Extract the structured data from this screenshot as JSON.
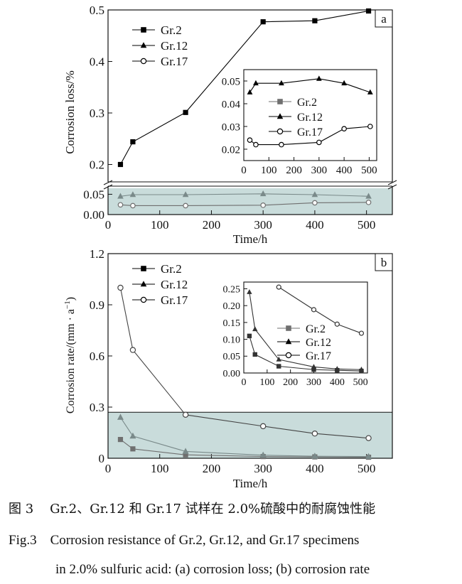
{
  "chart_data": [
    {
      "type": "line",
      "panel_label": "a",
      "xlabel": "Time/h",
      "ylabel": "Corrosion loss/%",
      "x_ticks": [
        "0",
        "100",
        "200",
        "300",
        "400",
        "500"
      ],
      "upper_y_ticks": [
        "0.2",
        "0.3",
        "0.4",
        "0.5"
      ],
      "lower_y_ticks": [
        "0.00",
        "0.05"
      ],
      "xlim": [
        0,
        550
      ],
      "upper_ylim": [
        0.18,
        0.5
      ],
      "lower_ylim": [
        0,
        0.07
      ],
      "shaded_band_ylim": [
        0,
        0.065
      ],
      "series": [
        {
          "name": "Gr.2",
          "marker": "square",
          "x": [
            24,
            48,
            150,
            300,
            400,
            504
          ],
          "values": [
            0.2,
            0.244,
            0.301,
            0.477,
            0.479,
            0.498
          ]
        },
        {
          "name": "Gr.12",
          "marker": "triangle",
          "x": [
            24,
            48,
            150,
            300,
            400,
            504
          ],
          "values": [
            0.045,
            0.049,
            0.049,
            0.051,
            0.049,
            0.045
          ]
        },
        {
          "name": "Gr.17",
          "marker": "circle-open",
          "x": [
            24,
            48,
            150,
            300,
            400,
            504
          ],
          "values": [
            0.024,
            0.022,
            0.022,
            0.023,
            0.029,
            0.03
          ]
        }
      ],
      "inset": {
        "x_ticks": [
          "0",
          "100",
          "200",
          "300",
          "400",
          "500"
        ],
        "y_ticks": [
          "0.02",
          "0.03",
          "0.04",
          "0.05"
        ],
        "xlim": [
          0,
          530
        ],
        "ylim": [
          0.015,
          0.055
        ],
        "series": [
          {
            "name": "Gr.12",
            "marker": "triangle",
            "x": [
              24,
              48,
              150,
              300,
              400,
              504
            ],
            "values": [
              0.045,
              0.049,
              0.049,
              0.051,
              0.049,
              0.045
            ]
          },
          {
            "name": "Gr.17",
            "marker": "circle-open",
            "x": [
              24,
              48,
              150,
              300,
              400,
              504
            ],
            "values": [
              0.024,
              0.022,
              0.022,
              0.023,
              0.029,
              0.03
            ]
          }
        ],
        "legend": [
          "Gr.2",
          "Gr.12",
          "Gr.17"
        ]
      }
    },
    {
      "type": "line",
      "panel_label": "b",
      "xlabel": "Time/h",
      "ylabel": "Corrosion rate/(mm·a⁻¹)",
      "ylabel_main": "Corrosion rate/(mm · a",
      "ylabel_sup": "−1",
      "ylabel_end": ")",
      "x_ticks": [
        "0",
        "100",
        "200",
        "300",
        "400",
        "500"
      ],
      "y_ticks": [
        "0",
        "0.3",
        "0.6",
        "0.9",
        "1.2"
      ],
      "xlim": [
        0,
        550
      ],
      "ylim": [
        0,
        1.2
      ],
      "shaded_band_ylim": [
        0,
        0.27
      ],
      "series": [
        {
          "name": "Gr.2",
          "marker": "square",
          "x": [
            24,
            48,
            150,
            300,
            400,
            504
          ],
          "values": [
            0.11,
            0.055,
            0.02,
            0.01,
            0.008,
            0.006
          ]
        },
        {
          "name": "Gr.12",
          "marker": "triangle",
          "x": [
            24,
            48,
            150,
            300,
            400,
            504
          ],
          "values": [
            0.24,
            0.13,
            0.04,
            0.018,
            0.012,
            0.01
          ]
        },
        {
          "name": "Gr.17",
          "marker": "circle-open",
          "x": [
            24,
            48,
            150,
            300,
            400,
            504
          ],
          "values": [
            1.0,
            0.635,
            0.255,
            0.188,
            0.145,
            0.118
          ]
        }
      ],
      "inset": {
        "x_ticks": [
          "0",
          "100",
          "200",
          "300",
          "400",
          "500"
        ],
        "y_ticks": [
          "0.00",
          "0.05",
          "0.10",
          "0.15",
          "0.20",
          "0.25"
        ],
        "xlim": [
          0,
          530
        ],
        "ylim": [
          0,
          0.27
        ],
        "series": [
          {
            "name": "Gr.2",
            "marker": "square",
            "x": [
              24,
              48,
              150,
              300,
              400,
              504
            ],
            "values": [
              0.11,
              0.055,
              0.02,
              0.01,
              0.008,
              0.006
            ]
          },
          {
            "name": "Gr.12",
            "marker": "triangle",
            "x": [
              24,
              48,
              150,
              300,
              400,
              504
            ],
            "values": [
              0.24,
              0.13,
              0.04,
              0.018,
              0.012,
              0.01
            ]
          },
          {
            "name": "Gr.17",
            "marker": "circle-open",
            "x": [
              150,
              300,
              400,
              504
            ],
            "values": [
              0.255,
              0.188,
              0.145,
              0.118
            ]
          }
        ],
        "legend": [
          "Gr.2",
          "Gr.12",
          "Gr.17"
        ]
      }
    }
  ],
  "caption": {
    "cn_label": "图 3",
    "cn_text": "Gr.2、Gr.12 和 Gr.17 试样在 2.0%硫酸中的耐腐蚀性能",
    "en_label": "Fig.3",
    "en_text_line1": "Corrosion resistance of Gr.2, Gr.12, and Gr.17 specimens",
    "en_text_line2": "in 2.0% sulfuric acid: (a) corrosion loss; (b) corrosion rate"
  },
  "colors": {
    "band": "#c9dcdb",
    "gr2_main": "#000000",
    "gr2_faded": "#6f6f6f",
    "gr12_faded": "#7a8a8a",
    "gr17_faded": "#6f6f6f",
    "axis": "#111111"
  }
}
